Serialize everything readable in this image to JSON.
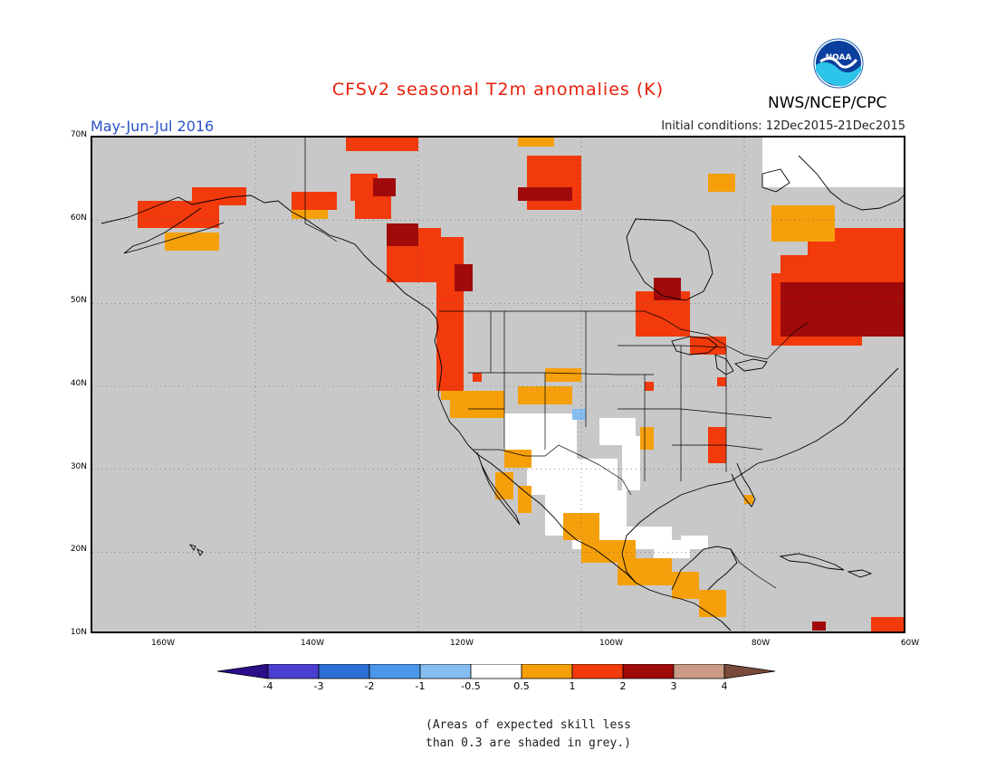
{
  "title": "CFSv2 seasonal T2m anomalies (K)",
  "period": "May-Jun-Jul 2016",
  "agency": "NWS/NCEP/CPC",
  "logo_text": "NOAA",
  "initial_conditions": "Initial conditions: 12Dec2015-21Dec2015",
  "lat_labels": [
    "70N",
    "60N",
    "50N",
    "40N",
    "30N",
    "20N",
    "10N"
  ],
  "lon_labels": [
    "160W",
    "140W",
    "120W",
    "100W",
    "80W",
    "60W"
  ],
  "colorbar": {
    "labels": [
      "-4",
      "-3",
      "-2",
      "-1",
      "-0.5",
      "0.5",
      "1",
      "2",
      "3",
      "4"
    ],
    "colors": [
      "#2a0e8a",
      "#4a3fcf",
      "#2e6fd6",
      "#4a98ea",
      "#86bdf0",
      "#ffffff",
      "#f5a00a",
      "#f23a0c",
      "#a00a0a",
      "#c99a86",
      "#7a4a3a"
    ]
  },
  "note_line1": "(Areas of expected skill less",
  "note_line2": "than 0.3 are shaded in grey.)",
  "colors": {
    "background": "#c8c8c8",
    "white": "#ffffff",
    "orange": "#f5a00a",
    "red": "#f23a0c",
    "darkred": "#a00a0a",
    "lightblue": "#86bdf0",
    "title": "#e8200a",
    "period": "#2a52c8"
  }
}
